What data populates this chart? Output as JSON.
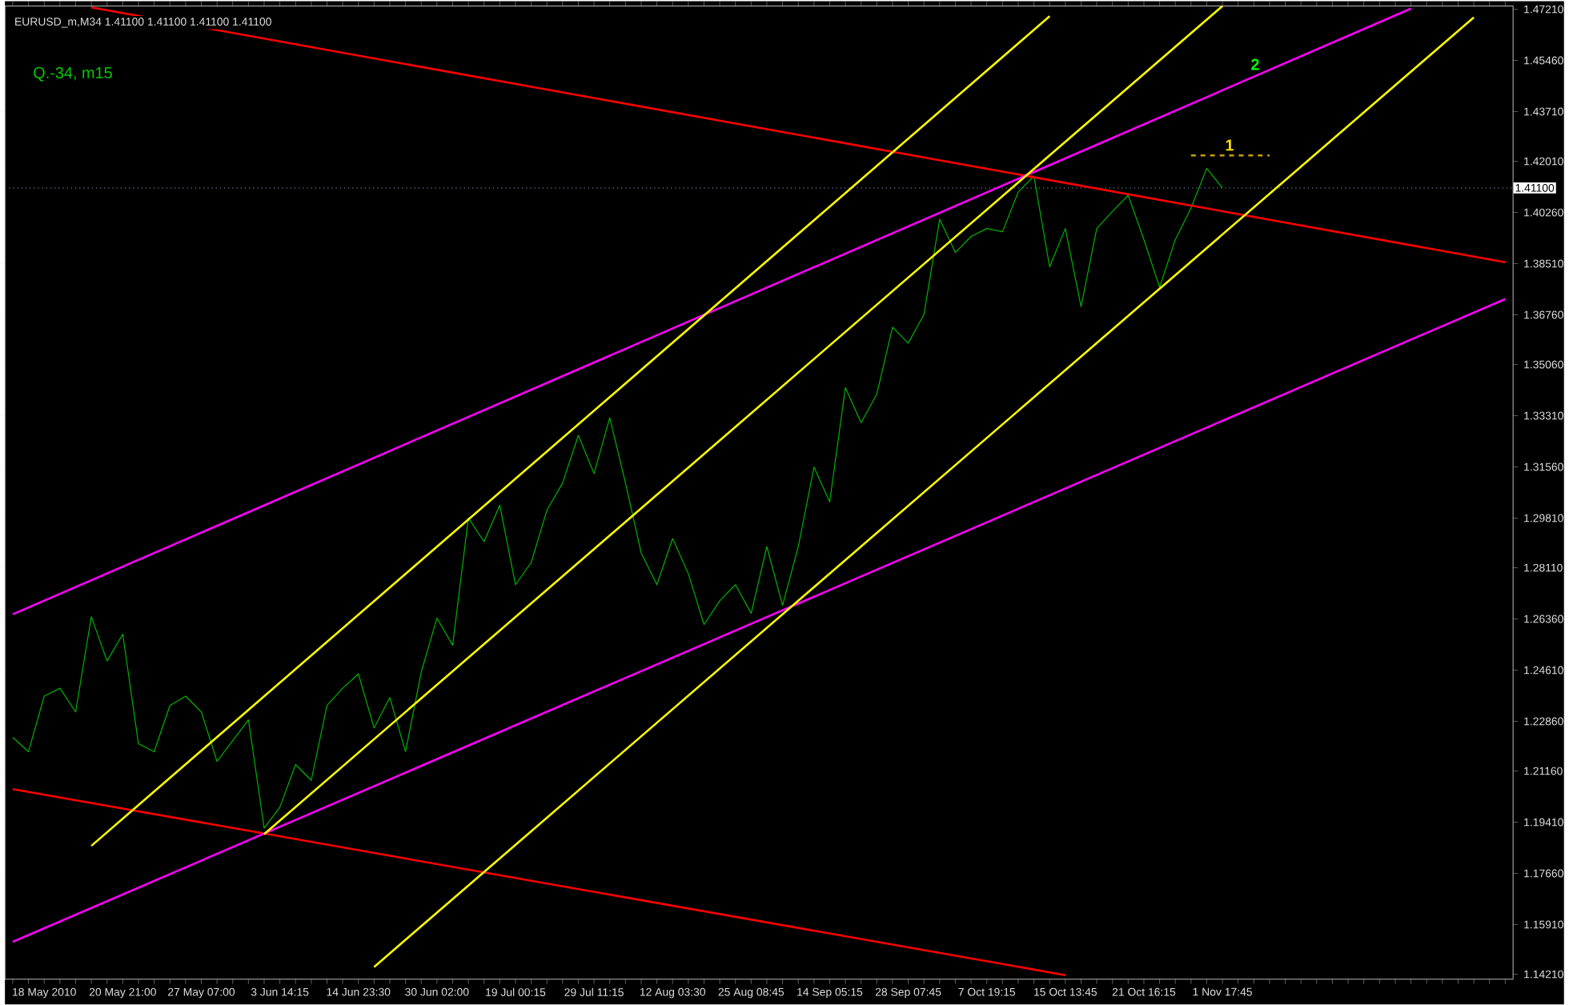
{
  "chart_data": {
    "type": "line",
    "title": "EURUSD_m,M34  1.41100 1.41100 1.41100 1.41100",
    "annotations": [
      "Q.-34, m15",
      "1",
      "2"
    ],
    "ylim": [
      1.1404,
      1.4732
    ],
    "categories": [
      null,
      null,
      "18 May 2010",
      null,
      null,
      null,
      null,
      "20 May 21:00",
      null,
      null,
      null,
      null,
      "27 May 07:00",
      null,
      null,
      null,
      null,
      "3 Jun 14:15",
      null,
      null,
      null,
      null,
      "14 Jun 23:30",
      null,
      null,
      null,
      null,
      "30 Jun 02:00",
      null,
      null,
      null,
      null,
      "19 Jul 00:15",
      null,
      null,
      null,
      null,
      "29 Jul 11:15",
      null,
      null,
      null,
      null,
      "12 Aug 03:30",
      null,
      null,
      null,
      null,
      "25 Aug 08:45",
      null,
      null,
      null,
      null,
      "14 Sep 05:15",
      null,
      null,
      null,
      null,
      "28 Sep 07:45",
      null,
      null,
      null,
      null,
      "7 Oct 19:15",
      null,
      null,
      null,
      null,
      "15 Oct 13:45",
      null,
      null,
      null,
      null,
      "21 Oct 16:15",
      null,
      null,
      null,
      null,
      "1 Nov 17:45",
      null,
      null,
      null,
      null,
      null,
      null,
      null,
      null,
      null,
      null,
      null,
      null,
      null,
      null,
      null,
      null,
      null,
      null
    ],
    "yticks": [
      {
        "value": 1.4721,
        "label": "1.47210"
      },
      {
        "value": 1.4546,
        "label": "1.45460"
      },
      {
        "value": 1.4371,
        "label": "1.43710"
      },
      {
        "value": 1.4201,
        "label": "1.42010"
      },
      {
        "value": 1.4026,
        "label": "1.40260"
      },
      {
        "value": 1.3851,
        "label": "1.38510"
      },
      {
        "value": 1.3676,
        "label": "1.36760"
      },
      {
        "value": 1.3506,
        "label": "1.35060"
      },
      {
        "value": 1.3331,
        "label": "1.33310"
      },
      {
        "value": 1.3156,
        "label": "1.31560"
      },
      {
        "value": 1.2981,
        "label": "1.29810"
      },
      {
        "value": 1.2811,
        "label": "1.28110"
      },
      {
        "value": 1.2636,
        "label": "1.26360"
      },
      {
        "value": 1.2461,
        "label": "1.24610"
      },
      {
        "value": 1.2286,
        "label": "1.22860"
      },
      {
        "value": 1.2116,
        "label": "1.21160"
      },
      {
        "value": 1.1941,
        "label": "1.19410"
      },
      {
        "value": 1.1766,
        "label": "1.17660"
      },
      {
        "value": 1.1591,
        "label": "1.15910"
      },
      {
        "value": 1.1421,
        "label": "1.14210"
      }
    ],
    "ref_lines": [
      {
        "axis": "y",
        "value": 1.411,
        "label": "1.41100",
        "color": "#7080a0",
        "line_style": "dotted"
      }
    ],
    "series": [
      {
        "color": "#00b400",
        "values": [
          1.2231,
          1.2182,
          1.2372,
          1.2399,
          1.2318,
          1.2644,
          1.2492,
          1.2584,
          1.2209,
          1.2182,
          1.234,
          1.2372,
          1.2318,
          1.2149,
          1.222,
          1.2291,
          1.1921,
          1.1992,
          1.2138,
          1.2084,
          1.234,
          1.2399,
          1.2448,
          1.2263,
          1.2367,
          1.2182,
          1.2454,
          1.2639,
          1.2546,
          1.2981,
          1.29,
          1.3025,
          1.2753,
          1.2829,
          1.3008,
          1.3101,
          1.3264,
          1.3133,
          1.3324,
          1.3101,
          1.2862,
          1.2753,
          1.2911,
          1.2791,
          1.2617,
          1.2698,
          1.2753,
          1.2655,
          1.2883,
          1.2682,
          1.2883,
          1.3155,
          1.3036,
          1.3427,
          1.3307,
          1.3405,
          1.3634,
          1.3579,
          1.3677,
          1.4003,
          1.3889,
          1.3944,
          1.3971,
          1.396,
          1.4096,
          1.415,
          1.384,
          1.3971,
          1.3704,
          1.3971,
          1.403,
          1.4085,
          1.3933,
          1.377,
          1.3933,
          1.4041,
          1.4177,
          1.411,
          null,
          null,
          null,
          null,
          null,
          null,
          null,
          null,
          null,
          null,
          null,
          null,
          null,
          null,
          null,
          null,
          null,
          null
        ]
      },
      {
        "color": "#ff0000",
        "values": [
          null,
          null,
          null,
          null,
          null,
          1.4727,
          null,
          null,
          null,
          null,
          null,
          null,
          null,
          null,
          null,
          null,
          null,
          null,
          null,
          null,
          null,
          null,
          null,
          null,
          null,
          null,
          null,
          null,
          null,
          null,
          null,
          null,
          null,
          null,
          null,
          null,
          null,
          null,
          null,
          null,
          null,
          null,
          null,
          null,
          null,
          null,
          null,
          null,
          null,
          null,
          null,
          null,
          null,
          null,
          null,
          null,
          null,
          null,
          null,
          null,
          null,
          null,
          null,
          null,
          null,
          null,
          null,
          null,
          null,
          null,
          null,
          null,
          null,
          null,
          null,
          null,
          null,
          null,
          null,
          null,
          null,
          null,
          null,
          null,
          null,
          null,
          null,
          null,
          null,
          null,
          null,
          null,
          null,
          null,
          null,
          1.3856
        ]
      },
      {
        "color": "#ff0000",
        "values": [
          1.2054,
          null,
          null,
          null,
          null,
          null,
          null,
          null,
          null,
          null,
          null,
          null,
          null,
          null,
          null,
          null,
          null,
          null,
          null,
          null,
          null,
          null,
          null,
          null,
          null,
          null,
          null,
          null,
          null,
          null,
          null,
          null,
          null,
          null,
          null,
          null,
          null,
          null,
          null,
          null,
          null,
          null,
          null,
          null,
          null,
          null,
          null,
          null,
          null,
          null,
          null,
          null,
          null,
          null,
          null,
          null,
          null,
          null,
          null,
          null,
          null,
          null,
          null,
          null,
          null,
          null,
          null,
          1.1418,
          null,
          null,
          null,
          null,
          null,
          null,
          null,
          null,
          null,
          null,
          null,
          null,
          null,
          null,
          null,
          null,
          null,
          null,
          null,
          null,
          null,
          null,
          null,
          null,
          null,
          null,
          null,
          null
        ]
      },
      {
        "color": "#ff00ff",
        "values": [
          1.2652,
          null,
          null,
          null,
          null,
          null,
          null,
          null,
          null,
          null,
          null,
          null,
          null,
          null,
          null,
          null,
          null,
          null,
          null,
          null,
          null,
          null,
          null,
          null,
          null,
          null,
          null,
          null,
          null,
          null,
          null,
          null,
          null,
          null,
          null,
          null,
          null,
          null,
          null,
          null,
          null,
          null,
          null,
          null,
          null,
          null,
          null,
          null,
          null,
          null,
          null,
          null,
          null,
          null,
          null,
          null,
          null,
          null,
          null,
          null,
          null,
          null,
          null,
          null,
          null,
          null,
          null,
          null,
          null,
          null,
          null,
          null,
          null,
          null,
          null,
          null,
          null,
          null,
          null,
          null,
          null,
          null,
          null,
          null,
          null,
          null,
          null,
          null,
          null,
          1.4723,
          null,
          null,
          null,
          null,
          null,
          null
        ]
      },
      {
        "color": "#ff00ff",
        "values": [
          1.1532,
          null,
          null,
          null,
          null,
          null,
          null,
          null,
          null,
          null,
          null,
          null,
          null,
          null,
          null,
          null,
          null,
          null,
          null,
          null,
          null,
          null,
          null,
          null,
          null,
          null,
          null,
          null,
          null,
          null,
          null,
          null,
          null,
          null,
          null,
          null,
          null,
          null,
          null,
          null,
          null,
          null,
          null,
          null,
          null,
          null,
          null,
          null,
          null,
          null,
          null,
          null,
          null,
          null,
          null,
          null,
          null,
          null,
          null,
          null,
          null,
          null,
          null,
          null,
          null,
          null,
          null,
          null,
          null,
          null,
          null,
          null,
          null,
          null,
          null,
          null,
          null,
          null,
          null,
          null,
          null,
          null,
          null,
          null,
          null,
          null,
          null,
          null,
          null,
          null,
          null,
          null,
          null,
          null,
          null,
          1.373
        ]
      },
      {
        "color": "#ffff00",
        "values": [
          null,
          null,
          null,
          null,
          null,
          1.186,
          null,
          null,
          null,
          null,
          null,
          null,
          null,
          null,
          null,
          null,
          null,
          null,
          null,
          null,
          null,
          null,
          null,
          null,
          null,
          null,
          null,
          null,
          null,
          null,
          null,
          null,
          null,
          null,
          null,
          null,
          null,
          null,
          null,
          null,
          null,
          null,
          null,
          null,
          null,
          null,
          null,
          null,
          null,
          null,
          null,
          null,
          null,
          null,
          null,
          null,
          null,
          null,
          null,
          null,
          null,
          null,
          null,
          null,
          null,
          null,
          1.4697,
          null,
          null,
          null,
          null,
          null,
          null,
          null,
          null,
          null,
          null,
          null,
          null,
          null,
          null,
          null,
          null,
          null,
          null,
          null,
          null,
          null,
          null,
          null,
          null,
          null,
          null,
          null,
          null,
          null
        ]
      },
      {
        "color": "#ffff00",
        "values": [
          null,
          null,
          null,
          null,
          null,
          null,
          null,
          null,
          null,
          null,
          null,
          null,
          null,
          null,
          null,
          null,
          1.19,
          null,
          null,
          null,
          null,
          null,
          null,
          null,
          null,
          null,
          null,
          null,
          null,
          null,
          null,
          null,
          null,
          null,
          null,
          null,
          null,
          null,
          null,
          null,
          null,
          null,
          null,
          null,
          null,
          null,
          null,
          null,
          null,
          null,
          null,
          null,
          null,
          null,
          null,
          null,
          null,
          null,
          null,
          null,
          null,
          null,
          null,
          null,
          null,
          null,
          null,
          null,
          null,
          null,
          null,
          null,
          null,
          null,
          null,
          null,
          null,
          1.4732,
          null,
          null,
          null,
          null,
          null,
          null,
          null,
          null,
          null,
          null,
          null,
          null,
          null,
          null,
          null,
          null,
          null,
          null
        ]
      },
      {
        "color": "#ffff00",
        "values": [
          null,
          null,
          null,
          null,
          null,
          null,
          null,
          null,
          null,
          null,
          null,
          null,
          null,
          null,
          null,
          null,
          null,
          null,
          null,
          null,
          null,
          null,
          null,
          1.1446,
          null,
          null,
          null,
          null,
          null,
          null,
          null,
          null,
          null,
          null,
          null,
          null,
          null,
          null,
          null,
          null,
          null,
          null,
          null,
          null,
          null,
          null,
          null,
          null,
          null,
          null,
          null,
          null,
          null,
          null,
          null,
          null,
          null,
          null,
          null,
          null,
          null,
          null,
          null,
          null,
          null,
          null,
          null,
          null,
          null,
          null,
          null,
          null,
          null,
          null,
          null,
          null,
          null,
          null,
          null,
          null,
          null,
          null,
          null,
          null,
          null,
          null,
          null,
          null,
          null,
          null,
          null,
          null,
          null,
          1.4693,
          null,
          null
        ]
      },
      {
        "color": "#c8a000",
        "line_style": "dashed",
        "values": [
          null,
          null,
          null,
          null,
          null,
          null,
          null,
          null,
          null,
          null,
          null,
          null,
          null,
          null,
          null,
          null,
          null,
          null,
          null,
          null,
          null,
          null,
          null,
          null,
          null,
          null,
          null,
          null,
          null,
          null,
          null,
          null,
          null,
          null,
          null,
          null,
          null,
          null,
          null,
          null,
          null,
          null,
          null,
          null,
          null,
          null,
          null,
          null,
          null,
          null,
          null,
          null,
          null,
          null,
          null,
          null,
          null,
          null,
          null,
          null,
          null,
          null,
          null,
          null,
          null,
          null,
          null,
          null,
          null,
          null,
          null,
          null,
          null,
          null,
          null,
          1.4221,
          null,
          null,
          null,
          null,
          1.4221,
          null,
          null,
          null,
          null,
          null,
          null,
          null,
          null,
          null,
          null,
          null,
          null,
          null,
          null,
          null
        ]
      }
    ]
  }
}
